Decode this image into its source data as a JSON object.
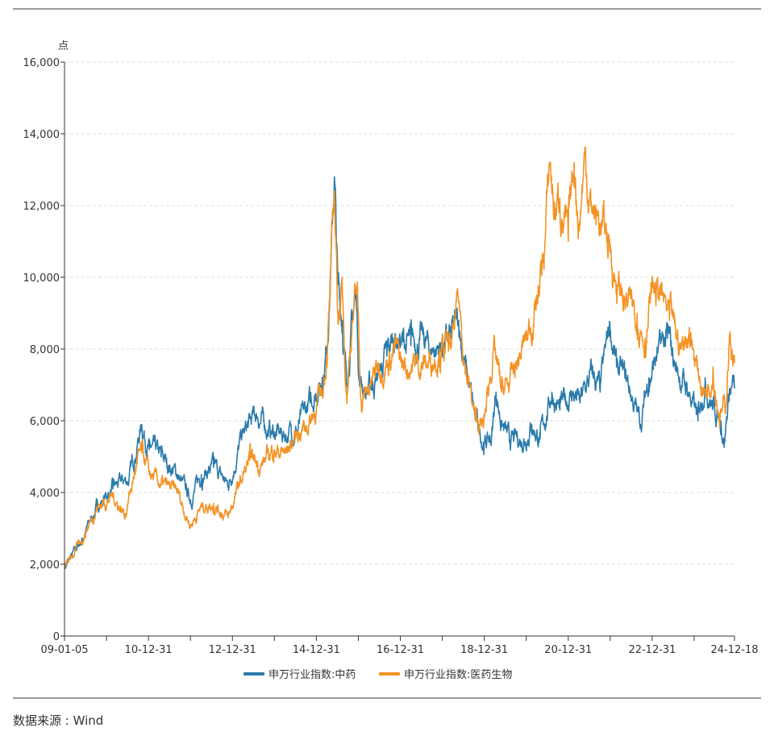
{
  "chart_data": {
    "type": "line",
    "title": "",
    "ylabel": "点",
    "xlabel": "",
    "ylim": [
      0,
      16000
    ],
    "yticks": [
      0,
      2000,
      4000,
      6000,
      8000,
      10000,
      12000,
      14000,
      16000
    ],
    "ytick_labels": [
      "0",
      "2,000",
      "4,000",
      "6,000",
      "8,000",
      "10,000",
      "12,000",
      "14,000",
      "16,000"
    ],
    "xlim": [
      2009.0,
      2024.96
    ],
    "xticks": [
      2009.0,
      2011.0,
      2013.0,
      2015.0,
      2017.0,
      2019.0,
      2021.0,
      2023.0,
      2024.96
    ],
    "xtick_labels": [
      "09-01-05",
      "10-12-31",
      "12-12-31",
      "14-12-31",
      "16-12-31",
      "18-12-31",
      "20-12-31",
      "22-12-31",
      "24-12-18"
    ],
    "grid": true,
    "legend_position": "bottom",
    "series": [
      {
        "name": "申万行业指数:中药",
        "color": "#2b7bab",
        "x": [
          2009.0,
          2009.38,
          2009.77,
          2010.15,
          2010.54,
          2010.84,
          2011.02,
          2011.3,
          2011.69,
          2012.0,
          2012.26,
          2012.55,
          2012.9,
          2013.22,
          2013.57,
          2013.9,
          2014.18,
          2014.57,
          2014.85,
          2015.14,
          2015.24,
          2015.33,
          2015.43,
          2015.51,
          2015.62,
          2015.72,
          2015.85,
          2015.95,
          2016.02,
          2016.2,
          2016.49,
          2016.68,
          2016.87,
          2017.06,
          2017.25,
          2017.45,
          2017.73,
          2018.02,
          2018.21,
          2018.39,
          2018.5,
          2018.6,
          2018.79,
          2018.98,
          2019.17,
          2019.28,
          2019.4,
          2019.6,
          2019.94,
          2020.13,
          2020.33,
          2020.61,
          2020.8,
          2021.09,
          2021.28,
          2021.57,
          2021.76,
          2021.99,
          2022.15,
          2022.43,
          2022.72,
          2022.92,
          2023.11,
          2023.36,
          2023.59,
          2023.88,
          2024.09,
          2024.26,
          2024.45,
          2024.64,
          2024.72,
          2024.84,
          2024.96
        ],
        "values": [
          1900,
          2600,
          3600,
          4100,
          4400,
          5900,
          5200,
          5000,
          4500,
          3800,
          4500,
          4700,
          4200,
          5500,
          6200,
          5700,
          5600,
          5800,
          6500,
          7200,
          8000,
          10000,
          12800,
          9800,
          8800,
          7000,
          8800,
          9500,
          7200,
          6800,
          7300,
          7800,
          8400,
          8200,
          8100,
          8300,
          8000,
          8100,
          8300,
          8800,
          7800,
          7200,
          6000,
          5400,
          5500,
          6800,
          6000,
          5400,
          5500,
          5900,
          5500,
          6800,
          6300,
          6800,
          6500,
          7300,
          6800,
          8700,
          7500,
          7000,
          5900,
          7200,
          7800,
          8300,
          7400,
          6800,
          6000,
          7200,
          6400,
          6000,
          5500,
          6900,
          6900
        ]
      },
      {
        "name": "申万行业指数:医药生物",
        "color": "#f39325",
        "x": [
          2009.0,
          2009.38,
          2009.77,
          2010.15,
          2010.44,
          2010.73,
          2010.84,
          2011.02,
          2011.3,
          2011.69,
          2012.0,
          2012.26,
          2012.55,
          2012.9,
          2013.13,
          2013.41,
          2013.7,
          2013.99,
          2014.28,
          2014.57,
          2014.85,
          2015.14,
          2015.24,
          2015.33,
          2015.43,
          2015.51,
          2015.62,
          2015.72,
          2015.85,
          2015.97,
          2016.07,
          2016.3,
          2016.49,
          2016.68,
          2016.87,
          2017.06,
          2017.35,
          2017.64,
          2017.93,
          2018.21,
          2018.39,
          2018.56,
          2018.79,
          2018.98,
          2019.22,
          2019.41,
          2019.6,
          2019.85,
          2020.1,
          2020.3,
          2020.43,
          2020.56,
          2020.68,
          2020.8,
          2021.0,
          2021.14,
          2021.26,
          2021.39,
          2021.54,
          2021.76,
          2021.97,
          2022.15,
          2022.41,
          2022.64,
          2022.83,
          2023.02,
          2023.21,
          2023.41,
          2023.69,
          2023.88,
          2024.08,
          2024.26,
          2024.45,
          2024.6,
          2024.75,
          2024.84,
          2024.96
        ],
        "values": [
          1900,
          2600,
          3600,
          3900,
          3400,
          4800,
          5100,
          4500,
          4200,
          4000,
          3100,
          3600,
          3700,
          3300,
          4100,
          4900,
          4800,
          5200,
          5100,
          5700,
          6000,
          6800,
          7800,
          9500,
          12400,
          9000,
          9500,
          6800,
          8800,
          9600,
          6500,
          7000,
          7600,
          7700,
          8000,
          7500,
          7600,
          7600,
          8000,
          8000,
          9300,
          7500,
          6000,
          5800,
          8000,
          6800,
          7000,
          7800,
          8600,
          9700,
          10700,
          13200,
          11800,
          12200,
          11000,
          13200,
          11500,
          13400,
          12000,
          11500,
          11000,
          9800,
          9200,
          9000,
          8300,
          9700,
          9500,
          8800,
          8000,
          8600,
          7400,
          6800,
          7500,
          6200,
          6400,
          8400,
          7600
        ]
      }
    ]
  },
  "source": "数据来源 : Wind"
}
